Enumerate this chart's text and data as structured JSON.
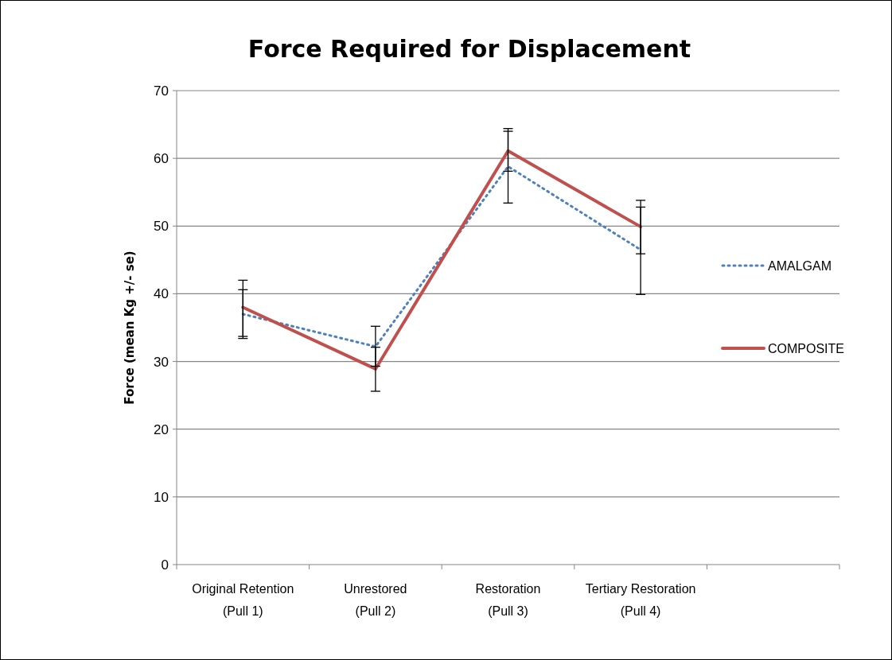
{
  "chart_data": {
    "type": "line",
    "title": "Force Required for Displacement",
    "ylabel": "Force (mean Kg +/- se)",
    "categories": [
      "Original Retention\n(Pull 1)",
      "Unrestored\n(Pull 2)",
      "Restoration\n(Pull 3)",
      "Tertiary Restoration\n(Pull 4)",
      null
    ],
    "series": [
      {
        "name": "AMALGAM",
        "color": "#4f81bd",
        "line_style": "dotted",
        "values": [
          37.0,
          32.2,
          58.8,
          46.5,
          null
        ],
        "errors": [
          [
            33.4,
            40.6
          ],
          [
            29.3,
            35.2
          ],
          [
            53.4,
            64.4
          ],
          [
            39.9,
            52.8
          ],
          null
        ]
      },
      {
        "name": "COMPOSITE",
        "color": "#c0504d",
        "line_style": "solid",
        "values": [
          38.0,
          28.9,
          61.1,
          49.9,
          null
        ],
        "errors": [
          [
            33.7,
            42.0
          ],
          [
            25.6,
            32.1
          ],
          [
            58.1,
            64.0
          ],
          [
            45.9,
            53.8
          ],
          null
        ]
      }
    ],
    "ylim": [
      0,
      70
    ],
    "yticks": [
      0,
      10,
      20,
      30,
      40,
      50,
      60,
      70
    ],
    "grid": "y",
    "legend": "right",
    "marker": "none"
  }
}
